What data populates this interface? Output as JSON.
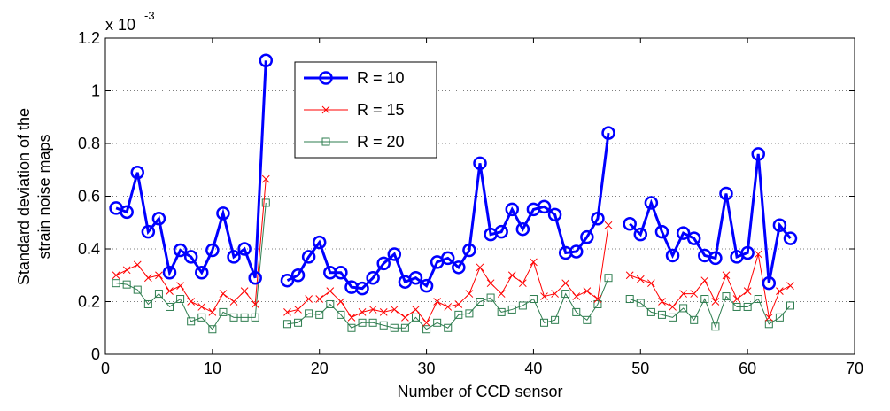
{
  "chart_data": {
    "type": "line",
    "ylabel": [
      "Standard deviation of the",
      "strain noise maps"
    ],
    "xlabel": "Number of CCD sensor",
    "y_multiplier": {
      "base": "x 10",
      "exponent": "-3"
    },
    "x": [
      1,
      2,
      3,
      4,
      5,
      6,
      7,
      8,
      9,
      10,
      11,
      12,
      13,
      14,
      15,
      16,
      17,
      18,
      19,
      20,
      21,
      22,
      23,
      24,
      25,
      26,
      27,
      28,
      29,
      30,
      31,
      32,
      33,
      34,
      35,
      36,
      37,
      38,
      39,
      40,
      41,
      42,
      43,
      44,
      45,
      46,
      47,
      48,
      49,
      50,
      51,
      52,
      53,
      54,
      55,
      56,
      57,
      58,
      59,
      60,
      61,
      62,
      63,
      64
    ],
    "series": [
      {
        "name": "R = 10",
        "color": "#0000ff",
        "marker": "o",
        "linewidth": 3,
        "values": [
          0.555,
          0.54,
          0.69,
          0.465,
          0.515,
          0.31,
          0.395,
          0.37,
          0.31,
          0.395,
          0.535,
          0.37,
          0.4,
          0.29,
          1.115,
          null,
          0.28,
          0.3,
          0.37,
          0.425,
          0.31,
          0.31,
          0.255,
          0.25,
          0.29,
          0.345,
          0.38,
          0.275,
          0.29,
          0.26,
          0.35,
          0.365,
          0.33,
          0.395,
          0.725,
          0.455,
          0.465,
          0.55,
          0.475,
          0.55,
          0.56,
          0.53,
          0.385,
          0.39,
          0.445,
          0.515,
          0.84,
          null,
          0.495,
          0.455,
          0.575,
          0.465,
          0.375,
          0.46,
          0.44,
          0.375,
          0.365,
          0.61,
          0.37,
          0.385,
          0.76,
          0.27,
          0.49,
          0.44
        ]
      },
      {
        "name": "R = 15",
        "color": "#ff0000",
        "marker": "x",
        "linewidth": 1,
        "values": [
          0.3,
          0.32,
          0.34,
          0.29,
          0.3,
          0.24,
          0.26,
          0.2,
          0.18,
          0.16,
          0.23,
          0.2,
          0.24,
          0.19,
          0.665,
          null,
          0.16,
          0.17,
          0.21,
          0.21,
          0.24,
          0.2,
          0.14,
          0.16,
          0.17,
          0.16,
          0.17,
          0.14,
          0.17,
          0.12,
          0.2,
          0.18,
          0.19,
          0.23,
          0.33,
          0.27,
          0.23,
          0.3,
          0.27,
          0.35,
          0.22,
          0.23,
          0.27,
          0.22,
          0.24,
          0.21,
          0.49,
          null,
          0.3,
          0.285,
          0.27,
          0.2,
          0.18,
          0.23,
          0.23,
          0.28,
          0.2,
          0.3,
          0.21,
          0.24,
          0.38,
          0.14,
          0.24,
          0.26
        ]
      },
      {
        "name": "R = 20",
        "color": "#2e7d4f",
        "marker": "s",
        "linewidth": 1,
        "values": [
          0.27,
          0.265,
          0.245,
          0.19,
          0.23,
          0.18,
          0.21,
          0.125,
          0.14,
          0.095,
          0.16,
          0.14,
          0.14,
          0.14,
          0.575,
          null,
          0.115,
          0.12,
          0.155,
          0.15,
          0.19,
          0.15,
          0.1,
          0.12,
          0.12,
          0.11,
          0.1,
          0.1,
          0.14,
          0.095,
          0.12,
          0.1,
          0.15,
          0.155,
          0.2,
          0.215,
          0.16,
          0.17,
          0.185,
          0.21,
          0.12,
          0.13,
          0.23,
          0.16,
          0.13,
          0.19,
          0.29,
          null,
          0.21,
          0.195,
          0.16,
          0.15,
          0.14,
          0.175,
          0.13,
          0.21,
          0.105,
          0.22,
          0.18,
          0.18,
          0.21,
          0.115,
          0.14,
          0.185
        ]
      }
    ],
    "xlim": [
      0,
      70
    ],
    "xticks": [
      0,
      10,
      20,
      30,
      40,
      50,
      60,
      70
    ],
    "ylim": [
      0,
      1.2
    ],
    "yticks": [
      0,
      0.2,
      0.4,
      0.6,
      0.8,
      1,
      1.2
    ],
    "grid": "y"
  }
}
